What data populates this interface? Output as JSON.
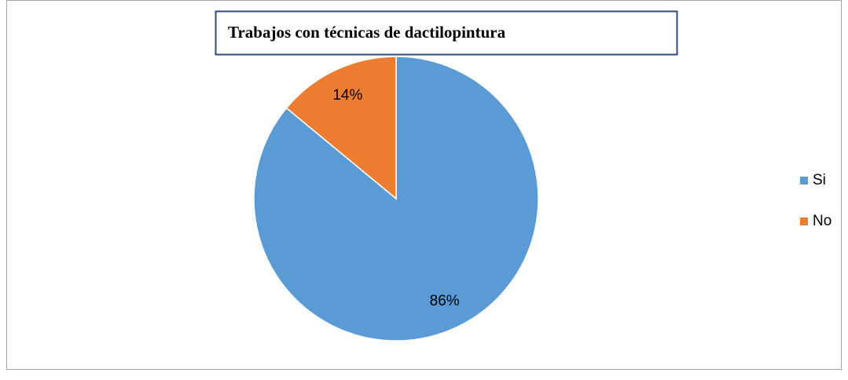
{
  "chart_data": {
    "type": "pie",
    "title": "Trabajos con técnicas de dactilopintura",
    "categories": [
      "Si",
      "No"
    ],
    "values": [
      86,
      14
    ],
    "value_labels": [
      "86%",
      "14%"
    ],
    "colors": [
      "#5b9bd5",
      "#ed7d31"
    ],
    "legend": "right"
  }
}
